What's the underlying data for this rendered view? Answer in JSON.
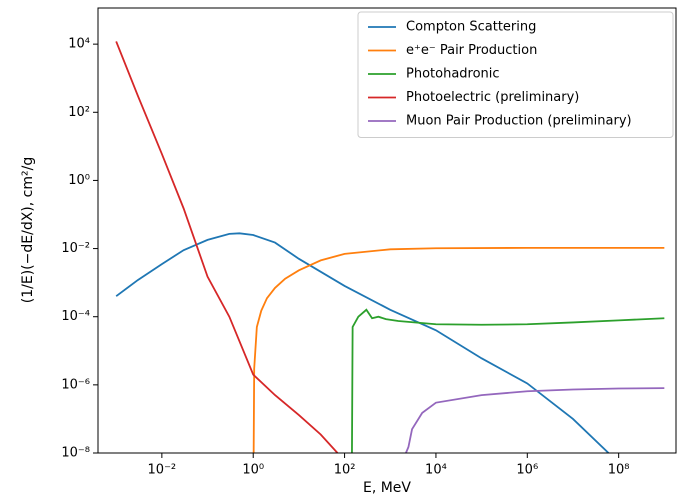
{
  "chart_data": {
    "type": "line",
    "xlabel": "E, MeV",
    "ylabel": "(1/E)(−dE/dX), cm²/g",
    "xscale": "log",
    "yscale": "log",
    "grid": false,
    "legend": "upper right",
    "xlim": [
      0.0004,
      1800000000
    ],
    "ylim": [
      1e-08,
      115000
    ],
    "xticks": [
      {
        "value": 0.01,
        "label": "10⁻²"
      },
      {
        "value": 1,
        "label": "10⁰"
      },
      {
        "value": 100,
        "label": "10²"
      },
      {
        "value": 10000,
        "label": "10⁴"
      },
      {
        "value": 1000000,
        "label": "10⁶"
      },
      {
        "value": 100000000,
        "label": "10⁸"
      }
    ],
    "yticks": [
      {
        "value": 1e-08,
        "label": "10⁻⁸"
      },
      {
        "value": 1e-06,
        "label": "10⁻⁶"
      },
      {
        "value": 0.0001,
        "label": "10⁻⁴"
      },
      {
        "value": 0.01,
        "label": "10⁻²"
      },
      {
        "value": 1,
        "label": "10⁰"
      },
      {
        "value": 100,
        "label": "10²"
      },
      {
        "value": 10000,
        "label": "10⁴"
      }
    ],
    "series": [
      {
        "name": "Compton Scattering",
        "color": "#1f77b4",
        "x": [
          0.001,
          0.003,
          0.01,
          0.03,
          0.1,
          0.3,
          0.5,
          1,
          3,
          10,
          100,
          1000,
          10000,
          100000,
          1000000,
          10000000,
          60000000
        ],
        "values": [
          0.0004,
          0.0012,
          0.0035,
          0.009,
          0.018,
          0.027,
          0.028,
          0.025,
          0.015,
          0.005,
          0.0008,
          0.00016,
          4e-05,
          6e-06,
          1.1e-06,
          1e-07,
          1e-08
        ]
      },
      {
        "name": "e⁺e⁻ Pair Production",
        "color": "#ff7f0e",
        "x": [
          1.022,
          1.05,
          1.2,
          1.5,
          2,
          3,
          5,
          10,
          30,
          100,
          1000,
          10000,
          1000000,
          1000000000
        ],
        "values": [
          1e-08,
          3e-06,
          5e-05,
          0.00015,
          0.00035,
          0.0007,
          0.0013,
          0.0023,
          0.0045,
          0.007,
          0.0095,
          0.0102,
          0.0105,
          0.0105
        ]
      },
      {
        "name": "Photohadronic",
        "color": "#2ca02c",
        "x": [
          145,
          150,
          200,
          300,
          400,
          550,
          800,
          1500,
          10000,
          100000,
          1000000,
          10000000,
          100000000,
          1000000000
        ],
        "values": [
          1e-08,
          5e-05,
          0.0001,
          0.00016,
          9e-05,
          0.0001,
          8.5e-05,
          7.5e-05,
          6e-05,
          5.8e-05,
          6e-05,
          6.8e-05,
          7.8e-05,
          9e-05
        ]
      },
      {
        "name": "Photoelectric (preliminary)",
        "color": "#d62728",
        "x": [
          0.001,
          0.003,
          0.01,
          0.03,
          0.1,
          0.3,
          1,
          3,
          10,
          30,
          70
        ],
        "values": [
          12000,
          300,
          6,
          0.15,
          0.0015,
          0.0001,
          2e-06,
          5e-07,
          1.3e-07,
          3.5e-08,
          1e-08
        ]
      },
      {
        "name": "Muon Pair Production (preliminary)",
        "color": "#9467bd",
        "x": [
          2200,
          2500,
          3000,
          5000,
          10000,
          100000,
          1000000,
          10000000,
          100000000,
          1000000000
        ],
        "values": [
          1e-08,
          1.5e-08,
          5e-08,
          1.5e-07,
          3e-07,
          5e-07,
          6.5e-07,
          7.3e-07,
          7.8e-07,
          8e-07
        ]
      }
    ]
  }
}
